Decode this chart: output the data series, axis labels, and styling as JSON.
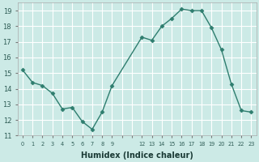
{
  "x": [
    0,
    1,
    2,
    3,
    4,
    5,
    6,
    7,
    8,
    9,
    12,
    13,
    14,
    15,
    16,
    17,
    18,
    19,
    20,
    21,
    22,
    23
  ],
  "y": [
    15.2,
    14.4,
    14.2,
    13.7,
    12.7,
    12.8,
    11.9,
    11.4,
    12.5,
    14.2,
    17.3,
    17.1,
    18.0,
    18.5,
    19.1,
    19.0,
    19.0,
    17.9,
    16.5,
    14.3,
    12.6,
    12.5
  ],
  "xlabel": "Humidex (Indice chaleur)",
  "xlim": [
    -0.5,
    23.5
  ],
  "ylim": [
    11,
    19.5
  ],
  "yticks": [
    11,
    12,
    13,
    14,
    15,
    16,
    17,
    18,
    19
  ],
  "labeled_xticks": [
    0,
    1,
    2,
    3,
    4,
    5,
    6,
    7,
    8,
    9,
    12,
    13,
    14,
    15,
    16,
    17,
    18,
    19,
    20,
    21,
    22,
    23
  ],
  "line_color": "#2e7d6e",
  "marker_color": "#2e7d6e",
  "bg_color": "#cceae6",
  "grid_color": "#ffffff",
  "grid_alpha": 1.0,
  "linewidth": 1.0,
  "marker_size": 2.5,
  "ytick_fontsize": 6,
  "xtick_fontsize": 4.8,
  "xlabel_fontsize": 7
}
